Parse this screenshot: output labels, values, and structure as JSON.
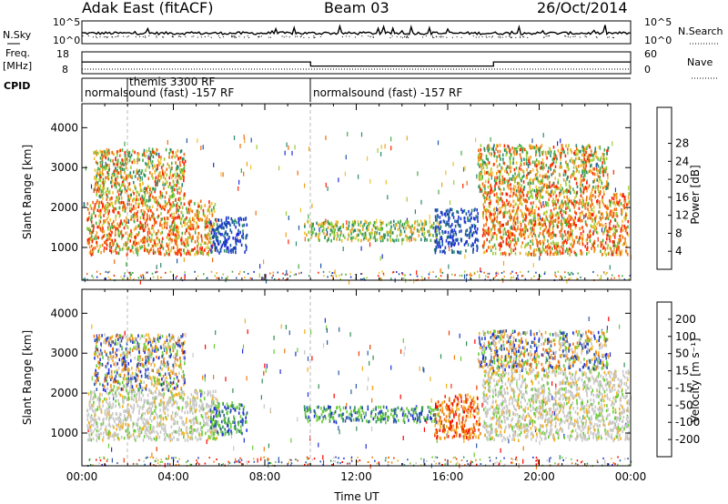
{
  "header": {
    "station": "Adak East (fitACF)",
    "beam": "Beam 03",
    "date": "26/Oct/2014"
  },
  "strip": {
    "nsky_label": "N.Sky",
    "nsky_ticks": [
      "10^5",
      "10^0"
    ],
    "nsearch_label": "N.Search",
    "nsearch_ticks": [
      "10^5",
      "10^0"
    ],
    "freq_label": "Freq.",
    "freq_unit": "[MHz]",
    "freq_ticks": [
      "18",
      "8"
    ],
    "nave_label": "Nave",
    "nave_ticks": [
      "60",
      "0"
    ],
    "cpid_label": "CPID",
    "cpid_segments": [
      {
        "name": "normalsound (fast) -157 RF",
        "start_hour": 0,
        "end_hour": 10
      },
      {
        "name": "themis 3300 RF",
        "start_hour": 2,
        "end_hour": 2
      },
      {
        "name": "normalsound (fast) -157 RF",
        "start_hour": 10,
        "end_hour": 24
      }
    ],
    "freq_steps": [
      {
        "start_hour": 0,
        "end_hour": 10,
        "value_mhz": 13.5
      },
      {
        "start_hour": 10,
        "end_hour": 18,
        "value_mhz": 11.0
      },
      {
        "start_hour": 18,
        "end_hour": 24,
        "value_mhz": 13.5
      }
    ]
  },
  "chart_data": [
    {
      "type": "heatmap",
      "panel": "power",
      "ylabel": "Slant Range [km]",
      "xlabel": "",
      "ylim": [
        180,
        4600
      ],
      "xlim_hours": [
        0,
        24
      ],
      "yticks": [
        "1000",
        "2000",
        "3000",
        "4000"
      ],
      "colorbar": {
        "label": "Power [dB]",
        "ticks": [
          "4",
          "8",
          "12",
          "16",
          "20",
          "24",
          "28"
        ],
        "range": [
          0,
          32
        ],
        "colors": [
          "#1f2fd8",
          "#1d56a8",
          "#2a8a6a",
          "#44aa44",
          "#9acd32",
          "#f1c232",
          "#f0a020",
          "#ee6a10",
          "#ff2000"
        ]
      },
      "scatter_regions": [
        {
          "hours": [
            0.2,
            5.8
          ],
          "range_km": [
            850,
            2200
          ],
          "level": "high"
        },
        {
          "hours": [
            0.5,
            4.5
          ],
          "range_km": [
            2200,
            3500
          ],
          "level": "mixed"
        },
        {
          "hours": [
            5.6,
            7.2
          ],
          "range_km": [
            900,
            1800
          ],
          "level": "low"
        },
        {
          "hours": [
            9.7,
            15.6
          ],
          "range_km": [
            1200,
            1700
          ],
          "level": "medium"
        },
        {
          "hours": [
            15.4,
            17.3
          ],
          "range_km": [
            900,
            2000
          ],
          "level": "low"
        },
        {
          "hours": [
            17.5,
            23.9
          ],
          "range_km": [
            850,
            2400
          ],
          "level": "high"
        },
        {
          "hours": [
            17.3,
            23.0
          ],
          "range_km": [
            2400,
            3600
          ],
          "level": "mixed"
        }
      ]
    },
    {
      "type": "heatmap",
      "panel": "velocity",
      "ylabel": "Slant Range [km]",
      "xlabel": "Time UT",
      "ylim": [
        180,
        4600
      ],
      "xlim_hours": [
        0,
        24
      ],
      "yticks": [
        "1000",
        "2000",
        "3000",
        "4000"
      ],
      "xticks": [
        "00:00",
        "04:00",
        "08:00",
        "12:00",
        "16:00",
        "20:00",
        "00:00"
      ],
      "colorbar": {
        "label": "Velocity [m s^-1]",
        "ticks": [
          "200",
          "100",
          "50",
          "15",
          "-15",
          "-50",
          "-100",
          "-200"
        ],
        "colors": [
          "#1f2fd8",
          "#2a5aa8",
          "#2f8f55",
          "#66cc33",
          "#c8c8c8",
          "#f0b020",
          "#f07a10",
          "#ee3a00",
          "#ff0000"
        ]
      },
      "scatter_regions": [
        {
          "hours": [
            0.2,
            6.0
          ],
          "range_km": [
            850,
            2100
          ],
          "level": "ground"
        },
        {
          "hours": [
            0.5,
            4.5
          ],
          "range_km": [
            2100,
            3500
          ],
          "level": "mixed"
        },
        {
          "hours": [
            5.6,
            7.2
          ],
          "range_km": [
            1000,
            1800
          ],
          "level": "positive"
        },
        {
          "hours": [
            9.7,
            15.6
          ],
          "range_km": [
            1300,
            1700
          ],
          "level": "positive"
        },
        {
          "hours": [
            15.4,
            17.4
          ],
          "range_km": [
            900,
            2000
          ],
          "level": "negative"
        },
        {
          "hours": [
            17.5,
            23.9
          ],
          "range_km": [
            850,
            2600
          ],
          "level": "ground"
        },
        {
          "hours": [
            17.3,
            23.0
          ],
          "range_km": [
            2600,
            3600
          ],
          "level": "mixed"
        }
      ]
    }
  ]
}
